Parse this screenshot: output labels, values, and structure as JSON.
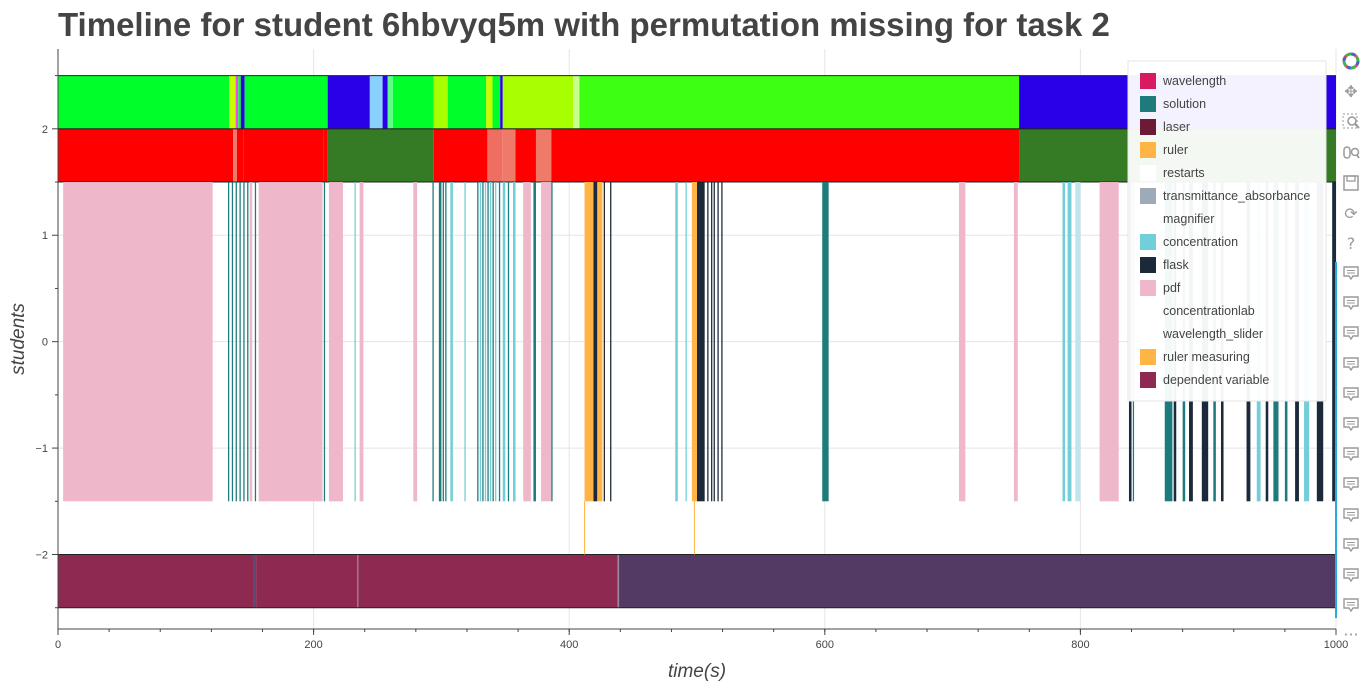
{
  "title": "Timeline for student 6hbvyq5m with permutation missing for task 2",
  "chart_data": {
    "type": "timeline",
    "xlabel": "time(s)",
    "ylabel": "students",
    "xlim": [
      0,
      1000
    ],
    "ylim": [
      -2.7,
      2.75
    ],
    "x_ticks": [
      0,
      200,
      400,
      600,
      800,
      1000
    ],
    "y_ticks": [
      -2,
      -1,
      0,
      1,
      2
    ],
    "y_tick_labels": [
      "−2",
      "−1",
      "0",
      "1",
      "2"
    ],
    "grid": true,
    "legend_position": "top-right",
    "legend": [
      {
        "label": "wavelength",
        "color": "#d81b60"
      },
      {
        "label": "solution",
        "color": "#1e7b7b"
      },
      {
        "label": "laser",
        "color": "#6d1a36"
      },
      {
        "label": "ruler",
        "color": "#ffb545"
      },
      {
        "label": "restarts",
        "color": "#ffffff"
      },
      {
        "label": "transmittance_absorbance",
        "color": "#9faab8"
      },
      {
        "label": "magnifier",
        "color": "#ffffff"
      },
      {
        "label": "concentration",
        "color": "#72cfd9"
      },
      {
        "label": "flask",
        "color": "#1b2a3a"
      },
      {
        "label": "pdf",
        "color": "#eeb8ca"
      },
      {
        "label": "concentrationlab",
        "color": "#ffffff"
      },
      {
        "label": "wavelength_slider",
        "color": "#ffffff"
      },
      {
        "label": "ruler measuring",
        "color": "#ffb545"
      },
      {
        "label": "dependent variable",
        "color": "#8e2a52"
      }
    ],
    "bands": [
      {
        "name": "top-state-row",
        "y_range": [
          2,
          2.5
        ],
        "segments": [
          {
            "start": 0,
            "end": 134,
            "color": "#00ff2a"
          },
          {
            "start": 134,
            "end": 139,
            "color": "#c6ff00"
          },
          {
            "start": 139,
            "end": 141,
            "color": "#ff3cff"
          },
          {
            "start": 141,
            "end": 143,
            "color": "#00ff2a"
          },
          {
            "start": 143,
            "end": 146,
            "color": "#2a00e8"
          },
          {
            "start": 146,
            "end": 211,
            "color": "#00ff2a"
          },
          {
            "start": 211,
            "end": 244,
            "color": "#2a00e8"
          },
          {
            "start": 244,
            "end": 254,
            "color": "#8ad0ff"
          },
          {
            "start": 254,
            "end": 258,
            "color": "#2a00e8"
          },
          {
            "start": 258,
            "end": 262,
            "color": "#5cff86"
          },
          {
            "start": 262,
            "end": 294,
            "color": "#00ff2a"
          },
          {
            "start": 294,
            "end": 305,
            "color": "#a8ff00"
          },
          {
            "start": 305,
            "end": 335,
            "color": "#00ff2a"
          },
          {
            "start": 335,
            "end": 340,
            "color": "#c6ff00"
          },
          {
            "start": 340,
            "end": 346,
            "color": "#00ff2a"
          },
          {
            "start": 346,
            "end": 348,
            "color": "#2a00e8"
          },
          {
            "start": 348,
            "end": 403,
            "color": "#a8ff00"
          },
          {
            "start": 403,
            "end": 408,
            "color": "#c9ff8e"
          },
          {
            "start": 408,
            "end": 752,
            "color": "#3dff12"
          },
          {
            "start": 752,
            "end": 1000,
            "color": "#2a00e8"
          }
        ]
      },
      {
        "name": "second-state-row",
        "y_range": [
          1.5,
          2
        ],
        "segments": [
          {
            "start": 0,
            "end": 137,
            "color": "#ff0000"
          },
          {
            "start": 137,
            "end": 140,
            "color": "#f07a6a"
          },
          {
            "start": 140,
            "end": 145,
            "color": "#ff0000"
          },
          {
            "start": 145,
            "end": 208,
            "color": "#ff0000"
          },
          {
            "start": 208,
            "end": 211,
            "color": "#ff0000"
          },
          {
            "start": 211,
            "end": 294,
            "color": "#357a24"
          },
          {
            "start": 294,
            "end": 336,
            "color": "#ff0000"
          },
          {
            "start": 336,
            "end": 348,
            "color": "#ee6e62"
          },
          {
            "start": 348,
            "end": 358,
            "color": "#f07a6a"
          },
          {
            "start": 358,
            "end": 374,
            "color": "#ff0000"
          },
          {
            "start": 374,
            "end": 386,
            "color": "#f07a6a"
          },
          {
            "start": 386,
            "end": 752,
            "color": "#ff0000"
          },
          {
            "start": 752,
            "end": 1000,
            "color": "#357a24"
          }
        ]
      },
      {
        "name": "bottom-state-row",
        "y_range": [
          -2.5,
          -2
        ],
        "segments": [
          {
            "start": 0,
            "end": 153,
            "color": "#8e2a52"
          },
          {
            "start": 153,
            "end": 155,
            "color": "#5a4a72"
          },
          {
            "start": 155,
            "end": 234,
            "color": "#8e2a52"
          },
          {
            "start": 234,
            "end": 235,
            "color": "#8a7888"
          },
          {
            "start": 235,
            "end": 438,
            "color": "#8e2a52"
          },
          {
            "start": 438,
            "end": 439,
            "color": "#9a8aa0"
          },
          {
            "start": 439,
            "end": 1000,
            "color": "#533a64"
          }
        ]
      }
    ],
    "events": {
      "y_range": [
        -1.5,
        1.5
      ],
      "marks": [
        {
          "start": 4,
          "end": 121,
          "color": "#eeb8ca"
        },
        {
          "start": 133,
          "end": 134,
          "color": "#1e7b7b"
        },
        {
          "start": 136,
          "end": 137,
          "color": "#1e7b7b"
        },
        {
          "start": 139,
          "end": 140,
          "color": "#1e7b7b"
        },
        {
          "start": 142,
          "end": 143,
          "color": "#1e7b7b"
        },
        {
          "start": 145,
          "end": 146,
          "color": "#1e7b7b"
        },
        {
          "start": 148,
          "end": 149,
          "color": "#1e7b7b"
        },
        {
          "start": 150,
          "end": 152,
          "color": "#eeb8ca"
        },
        {
          "start": 154,
          "end": 155,
          "color": "#1e7b7b"
        },
        {
          "start": 157,
          "end": 207,
          "color": "#eeb8ca"
        },
        {
          "start": 208,
          "end": 209,
          "color": "#1e7b7b"
        },
        {
          "start": 212,
          "end": 223,
          "color": "#eeb8ca"
        },
        {
          "start": 232,
          "end": 233,
          "color": "#72cfd9"
        },
        {
          "start": 236,
          "end": 239,
          "color": "#eeb8ca"
        },
        {
          "start": 278,
          "end": 281,
          "color": "#eeb8ca"
        },
        {
          "start": 293,
          "end": 294,
          "color": "#1e7b7b"
        },
        {
          "start": 298,
          "end": 300,
          "color": "#1e7b7b"
        },
        {
          "start": 301,
          "end": 302,
          "color": "#1e7b7b"
        },
        {
          "start": 303,
          "end": 304,
          "color": "#1e7b7b"
        },
        {
          "start": 307,
          "end": 309,
          "color": "#72cfd9"
        },
        {
          "start": 318,
          "end": 319,
          "color": "#72cfd9"
        },
        {
          "start": 328,
          "end": 329,
          "color": "#1e7b7b"
        },
        {
          "start": 330,
          "end": 331,
          "color": "#72cfd9"
        },
        {
          "start": 332,
          "end": 333,
          "color": "#1e7b7b"
        },
        {
          "start": 334,
          "end": 335,
          "color": "#72cfd9"
        },
        {
          "start": 336,
          "end": 337,
          "color": "#1e7b7b"
        },
        {
          "start": 338,
          "end": 339,
          "color": "#72cfd9"
        },
        {
          "start": 340,
          "end": 341,
          "color": "#1e7b7b"
        },
        {
          "start": 342,
          "end": 343,
          "color": "#72cfd9"
        },
        {
          "start": 345,
          "end": 346,
          "color": "#1e7b7b"
        },
        {
          "start": 348,
          "end": 350,
          "color": "#72cfd9"
        },
        {
          "start": 352,
          "end": 353,
          "color": "#1e7b7b"
        },
        {
          "start": 356,
          "end": 358,
          "color": "#72cfd9"
        },
        {
          "start": 364,
          "end": 370,
          "color": "#eeb8ca"
        },
        {
          "start": 372,
          "end": 374,
          "color": "#1e7b7b"
        },
        {
          "start": 378,
          "end": 386,
          "color": "#eeb8ca"
        },
        {
          "start": 386,
          "end": 387,
          "color": "#1e7b7b"
        },
        {
          "start": 412,
          "end": 419,
          "color": "#ffb545"
        },
        {
          "start": 419,
          "end": 422,
          "color": "#1b2a3a"
        },
        {
          "start": 422,
          "end": 426,
          "color": "#ffb545"
        },
        {
          "start": 427,
          "end": 428,
          "color": "#1b2a3a"
        },
        {
          "start": 432,
          "end": 433,
          "color": "#1b2a3a"
        },
        {
          "start": 483,
          "end": 485,
          "color": "#72cfd9"
        },
        {
          "start": 491,
          "end": 492,
          "color": "#72cfd9"
        },
        {
          "start": 496,
          "end": 500,
          "color": "#ffb545"
        },
        {
          "start": 500,
          "end": 506,
          "color": "#1b2a3a"
        },
        {
          "start": 508,
          "end": 509,
          "color": "#1b2a3a"
        },
        {
          "start": 511,
          "end": 512,
          "color": "#1b2a3a"
        },
        {
          "start": 513,
          "end": 514,
          "color": "#1b2a3a"
        },
        {
          "start": 516,
          "end": 517,
          "color": "#1b2a3a"
        },
        {
          "start": 519,
          "end": 520,
          "color": "#1b2a3a"
        },
        {
          "start": 598,
          "end": 603,
          "color": "#1e7b7b"
        },
        {
          "start": 705,
          "end": 710,
          "color": "#eeb8ca"
        },
        {
          "start": 748,
          "end": 751,
          "color": "#eeb8ca"
        },
        {
          "start": 786,
          "end": 788,
          "color": "#72cfd9"
        },
        {
          "start": 790,
          "end": 793,
          "color": "#72cfd9"
        },
        {
          "start": 796,
          "end": 800,
          "color": "#bfe6ec"
        },
        {
          "start": 815,
          "end": 830,
          "color": "#eeb8ca"
        },
        {
          "start": 838,
          "end": 840,
          "color": "#1b2a3a"
        },
        {
          "start": 841,
          "end": 842,
          "color": "#1e7b7b"
        },
        {
          "start": 866,
          "end": 872,
          "color": "#1e7b7b"
        },
        {
          "start": 873,
          "end": 875,
          "color": "#1b2a3a"
        },
        {
          "start": 880,
          "end": 882,
          "color": "#1e7b7b"
        },
        {
          "start": 885,
          "end": 888,
          "color": "#1b2a3a"
        },
        {
          "start": 895,
          "end": 900,
          "color": "#1b2a3a"
        },
        {
          "start": 904,
          "end": 906,
          "color": "#1e7b7b"
        },
        {
          "start": 910,
          "end": 912,
          "color": "#1b2a3a"
        },
        {
          "start": 930,
          "end": 933,
          "color": "#1b2a3a"
        },
        {
          "start": 938,
          "end": 941,
          "color": "#72cfd9"
        },
        {
          "start": 945,
          "end": 947,
          "color": "#1b2a3a"
        },
        {
          "start": 951,
          "end": 955,
          "color": "#1e7b7b"
        },
        {
          "start": 960,
          "end": 962,
          "color": "#1e7b7b"
        },
        {
          "start": 968,
          "end": 971,
          "color": "#1b2a3a"
        },
        {
          "start": 975,
          "end": 979,
          "color": "#72cfd9"
        },
        {
          "start": 985,
          "end": 990,
          "color": "#1b2a3a"
        },
        {
          "start": 997,
          "end": 1000,
          "color": "#1b2a3a"
        }
      ]
    },
    "thin_markers": [
      {
        "x": 412,
        "y_range": [
          -2,
          -1.5
        ],
        "color": "#ffb545"
      },
      {
        "x": 498,
        "y_range": [
          -2,
          -1.5
        ],
        "color": "#ffb545"
      }
    ]
  },
  "toolbar": [
    {
      "name": "bokeh-logo-icon",
      "glyph": "logo"
    },
    {
      "name": "pan-tool-icon",
      "glyph": "✥"
    },
    {
      "name": "box-zoom-tool-icon",
      "glyph": "box-zoom"
    },
    {
      "name": "wheel-zoom-tool-icon",
      "glyph": "wheel"
    },
    {
      "name": "save-tool-icon",
      "glyph": "save"
    },
    {
      "name": "reset-tool-icon",
      "glyph": "⟳"
    },
    {
      "name": "help-tool-icon",
      "glyph": "?"
    },
    {
      "name": "hover-tool-icon",
      "glyph": "hover"
    },
    {
      "name": "hover-tool-icon",
      "glyph": "hover"
    },
    {
      "name": "hover-tool-icon",
      "glyph": "hover"
    },
    {
      "name": "hover-tool-icon",
      "glyph": "hover"
    },
    {
      "name": "hover-tool-icon",
      "glyph": "hover"
    },
    {
      "name": "hover-tool-icon",
      "glyph": "hover"
    },
    {
      "name": "hover-tool-icon",
      "glyph": "hover"
    },
    {
      "name": "hover-tool-icon",
      "glyph": "hover"
    },
    {
      "name": "hover-tool-icon",
      "glyph": "hover"
    },
    {
      "name": "hover-tool-icon",
      "glyph": "hover"
    },
    {
      "name": "hover-tool-icon",
      "glyph": "hover"
    },
    {
      "name": "hover-tool-icon",
      "glyph": "hover"
    },
    {
      "name": "more-tools-icon",
      "glyph": "···"
    }
  ]
}
